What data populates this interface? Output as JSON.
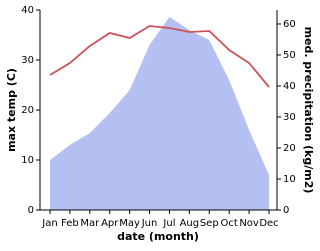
{
  "chart_data": {
    "type": "line-area",
    "xlabel": "date (month)",
    "ylabel": "max temp (C)",
    "y2label": "med. precipitation (kg/m2)",
    "categories": [
      "Jan",
      "Feb",
      "Mar",
      "Apr",
      "May",
      "Jun",
      "Jul",
      "Aug",
      "Sep",
      "Oct",
      "Nov",
      "Dec"
    ],
    "series": [
      {
        "name": "med. precipitation",
        "color": "#b4c0f2",
        "kind": "area",
        "axis": "y2",
        "values": [
          16.1,
          21,
          24.8,
          31.3,
          38.7,
          53.2,
          62.3,
          58,
          54.8,
          41.9,
          25.8,
          11.3
        ]
      },
      {
        "name": "max temp",
        "color": "#cd5158",
        "kind": "line",
        "values": [
          27,
          29.4,
          32.8,
          35.4,
          34.4,
          36.8,
          36.4,
          35.6,
          35.8,
          32,
          29.4,
          24.6
        ]
      }
    ],
    "ylim": [
      0,
      40
    ],
    "yticks": [
      0,
      10,
      20,
      30,
      40
    ],
    "y2lim": [
      0,
      64.5
    ],
    "y2ticks": [
      0,
      10,
      20,
      30,
      40,
      50,
      60
    ]
  }
}
